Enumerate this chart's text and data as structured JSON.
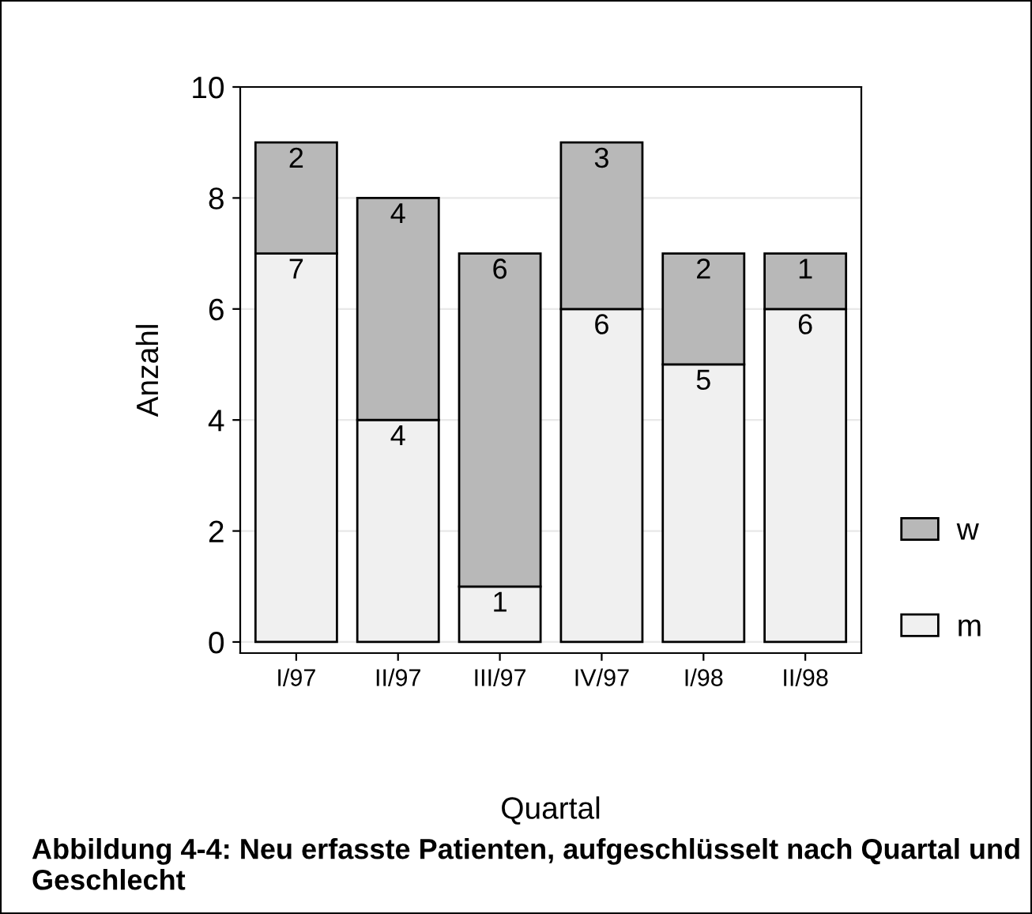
{
  "chart_data": {
    "type": "bar",
    "stacked": true,
    "xlabel": "Quartal",
    "ylabel": "Anzahl",
    "categories": [
      "I/97",
      "II/97",
      "III/97",
      "IV/97",
      "I/98",
      "II/98"
    ],
    "series": [
      {
        "name": "m",
        "color": "#f0f0f0",
        "values": [
          7,
          4,
          1,
          6,
          5,
          6
        ]
      },
      {
        "name": "w",
        "color": "#b8b8b8",
        "values": [
          2,
          4,
          6,
          3,
          2,
          1
        ]
      }
    ],
    "ylim": [
      -0.2,
      10
    ],
    "yticks": [
      0,
      2,
      4,
      6,
      8,
      10
    ],
    "grid": "y",
    "legend": "bottom right",
    "data_labels": true,
    "annotations": [
      "Abbildung 4-4: Neu erfasste Patienten, aufgeschlüsselt nach Quartal und Geschlecht"
    ]
  }
}
